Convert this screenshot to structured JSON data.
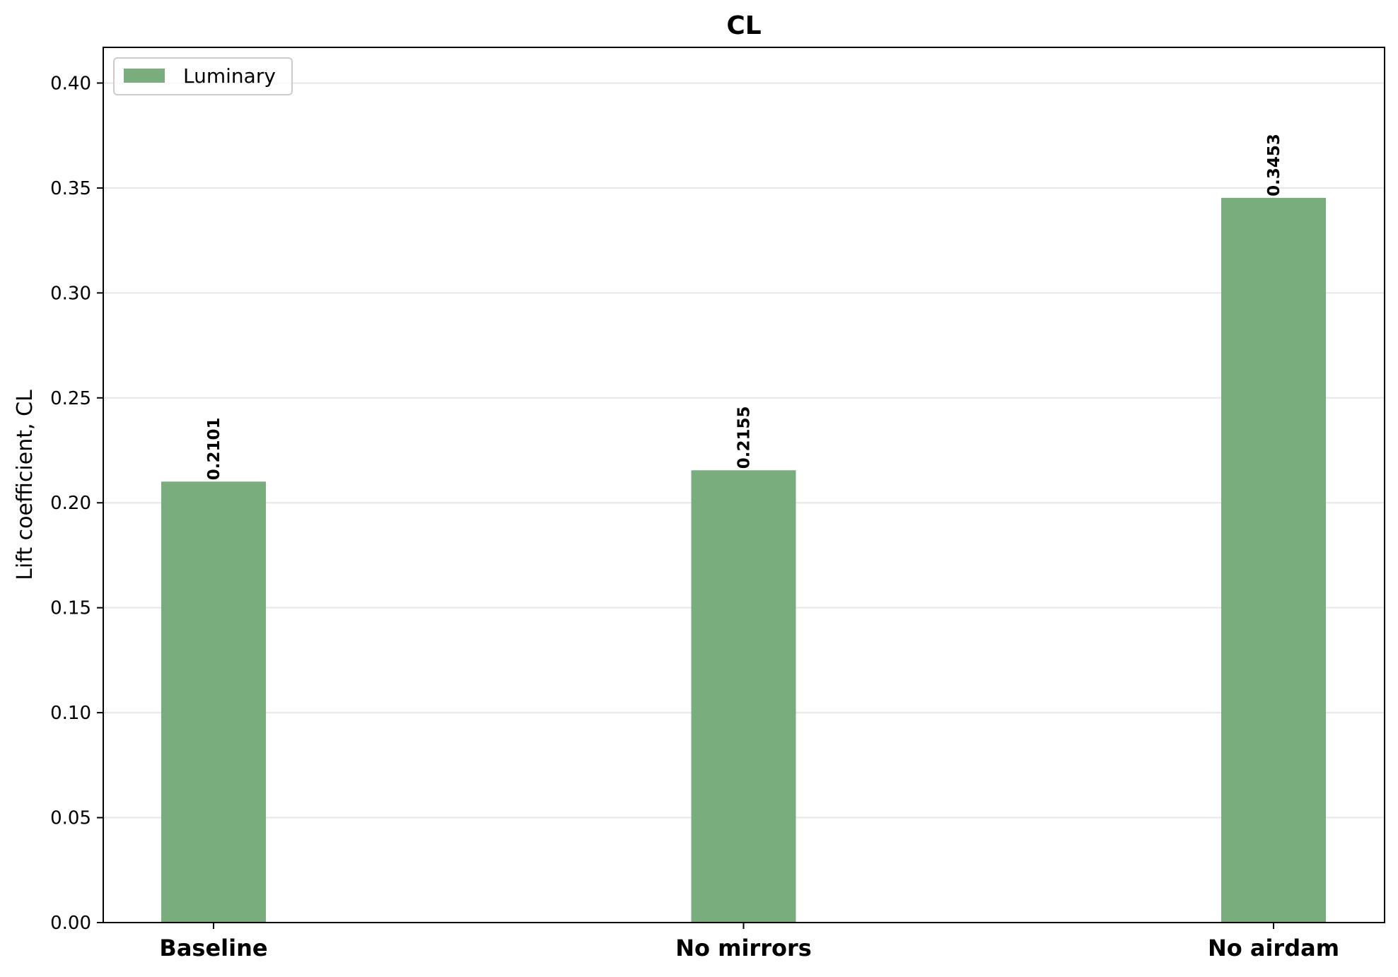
{
  "chart_data": {
    "type": "bar",
    "title": "CL",
    "xlabel": "",
    "ylabel": "Lift coefficient, CL",
    "categories": [
      "Baseline",
      "No mirrors",
      "No airdam"
    ],
    "series": [
      {
        "name": "Luminary",
        "values": [
          0.2101,
          0.2155,
          0.3453
        ],
        "color": "#7aad7e"
      }
    ],
    "value_labels": [
      "0.2101",
      "0.2155",
      "0.3453"
    ],
    "ylim": [
      0,
      0.417
    ],
    "yticks": [
      "0.00",
      "0.05",
      "0.10",
      "0.15",
      "0.20",
      "0.25",
      "0.30",
      "0.35",
      "0.40"
    ],
    "grid": "horizontal",
    "legend_position": "top-left"
  }
}
